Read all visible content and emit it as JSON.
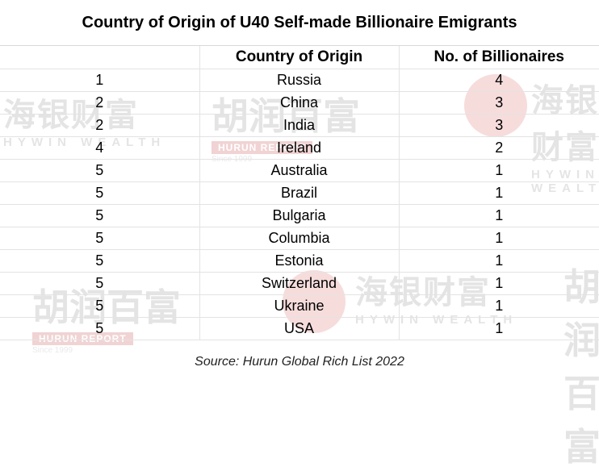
{
  "title": "Country of Origin of U40 Self-made Billionaire Emigrants",
  "table": {
    "headers": [
      "",
      "Country of Origin",
      "No. of Billionaires"
    ],
    "rows": [
      {
        "rank": "1",
        "country": "Russia",
        "count": "4"
      },
      {
        "rank": "2",
        "country": "China",
        "count": "3"
      },
      {
        "rank": "2",
        "country": "India",
        "count": "3"
      },
      {
        "rank": "4",
        "country": "Ireland",
        "count": "2"
      },
      {
        "rank": "5",
        "country": "Australia",
        "count": "1"
      },
      {
        "rank": "5",
        "country": "Brazil",
        "count": "1"
      },
      {
        "rank": "5",
        "country": "Bulgaria",
        "count": "1"
      },
      {
        "rank": "5",
        "country": "Columbia",
        "count": "1"
      },
      {
        "rank": "5",
        "country": "Estonia",
        "count": "1"
      },
      {
        "rank": "5",
        "country": "Switzerland",
        "count": "1"
      },
      {
        "rank": "5",
        "country": "Ukraine",
        "count": "1"
      },
      {
        "rank": "5",
        "country": "USA",
        "count": "1"
      }
    ]
  },
  "source": "Source: Hurun Global Rich List 2022",
  "watermarks": {
    "hywin_chars": "海银财富",
    "hywin_latin": "HYWIN WEALTH",
    "hurun_chars": "胡润百富",
    "hurun_latin": "HURUN REPORT",
    "hurun_since": "Since 1999",
    "registered": "®"
  }
}
